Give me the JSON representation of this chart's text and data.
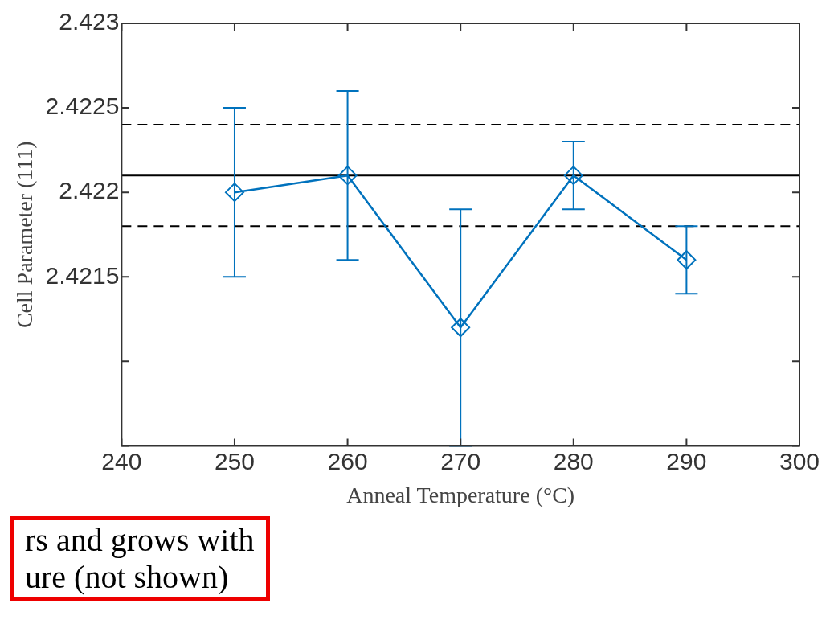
{
  "chart_data": {
    "type": "line",
    "xlabel": "Anneal Temperature (°C)",
    "ylabel": "Cell Parameter (111)",
    "x": [
      250,
      260,
      270,
      280,
      290
    ],
    "series": [
      {
        "color": "#0072bd",
        "values": [
          2.422,
          2.4221,
          2.4212,
          2.4221,
          2.4216
        ],
        "errors": [
          0.0005,
          [
            2.4216,
            2.4226
          ],
          [
            2.4205,
            2.4219
          ],
          [
            2.4219,
            2.4223
          ],
          [
            2.4214,
            2.4218
          ]
        ]
      }
    ],
    "marker": "diamond",
    "line_style": "solid",
    "xlim": [
      240,
      300
    ],
    "xticks": [
      240,
      250,
      260,
      270,
      280,
      290,
      300
    ],
    "ylim": [
      2.4205,
      2.423
    ],
    "yticks": [
      {
        "value": 2.4205,
        "label": null
      },
      {
        "value": 2.421,
        "label": null
      },
      2.4215,
      2.422,
      2.4225,
      2.423
    ],
    "ref_lines": [
      {
        "axis": "y",
        "value": 2.4221,
        "color": "#000000",
        "line_style": "solid"
      },
      {
        "axis": "y",
        "value": 2.4224,
        "color": "#000000",
        "line_style": "dashed"
      },
      {
        "axis": "y",
        "value": 2.4218,
        "color": "#000000",
        "line_style": "dashed"
      }
    ],
    "annotations": [
      "rs and grows with\nure (not shown)"
    ],
    "grid": false
  }
}
